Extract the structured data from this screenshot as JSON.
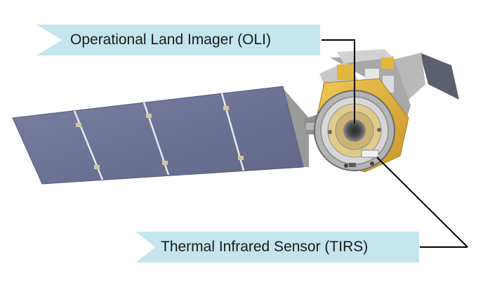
{
  "labels": {
    "oli": "Operational Land Imager (OLI)",
    "tirs": "Thermal Infrared Sensor (TIRS)"
  },
  "colors": {
    "callout_fill": "#c4e5ee",
    "solar_panel": "#6e7598",
    "satellite_body": "#e3b43c",
    "leader_line": "#000000"
  }
}
